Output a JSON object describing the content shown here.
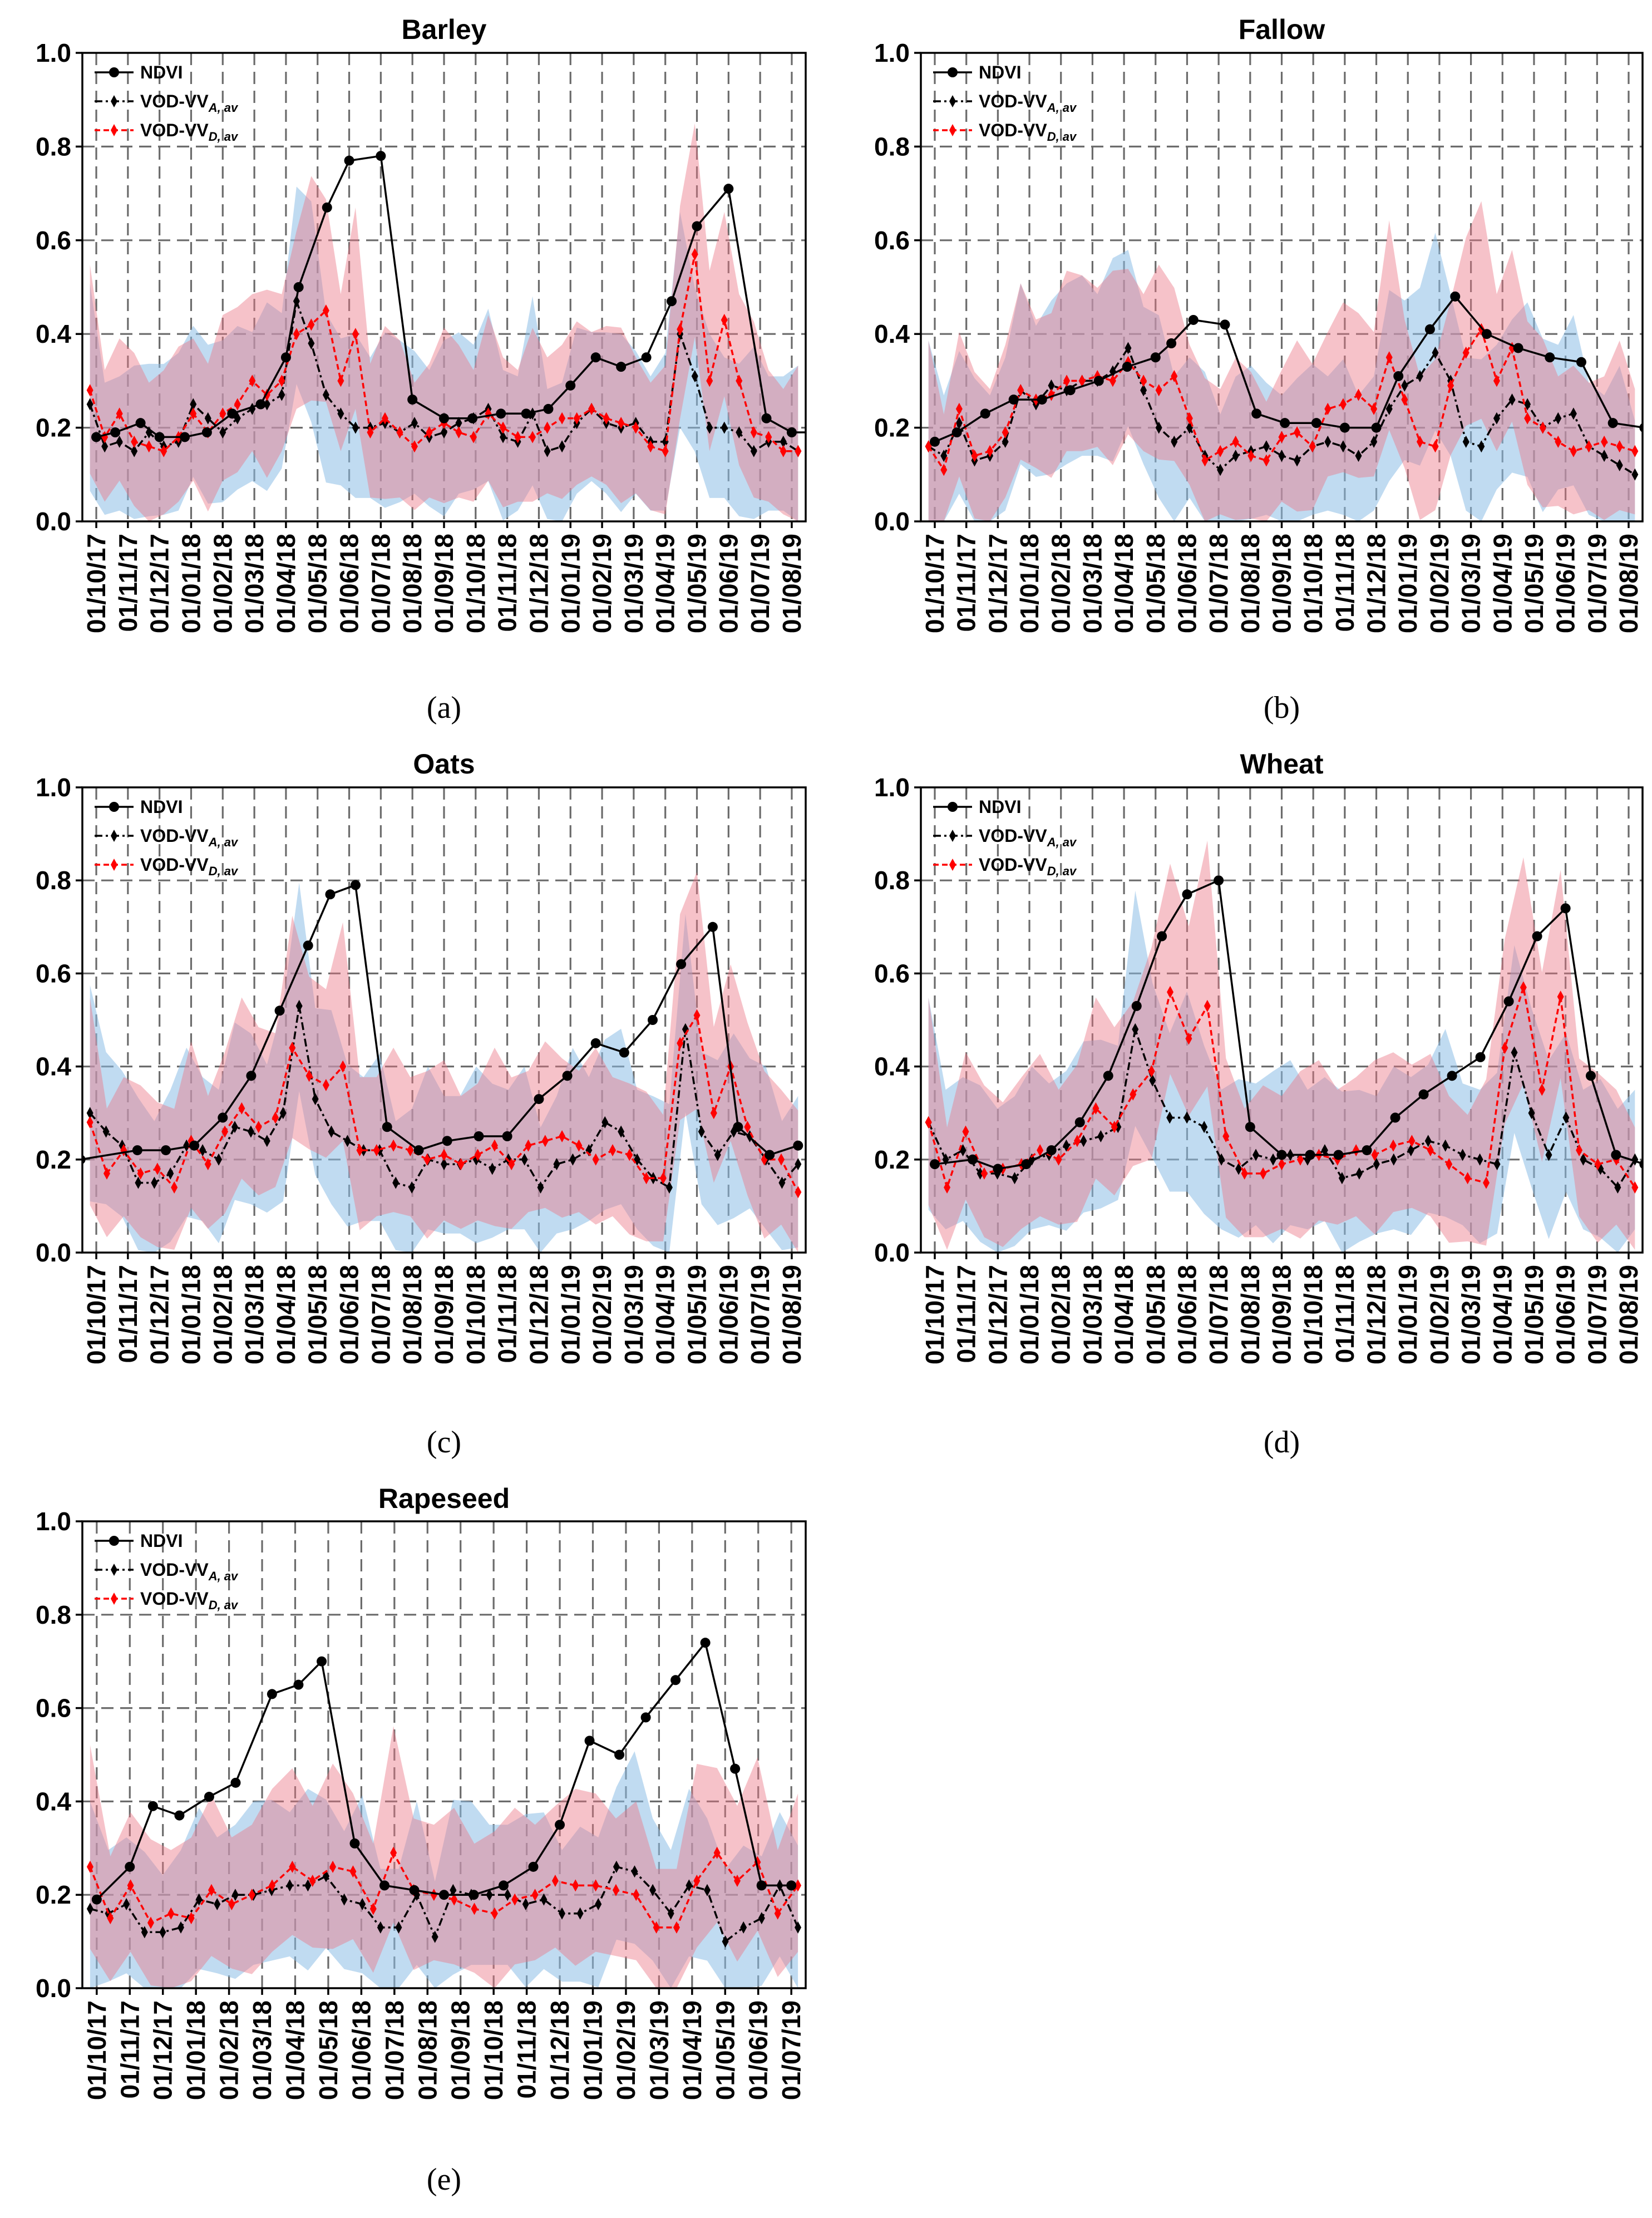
{
  "chart_data": [
    {
      "id": "a",
      "type": "line",
      "title": "Barley",
      "caption": "(a)",
      "ylim": [
        0,
        1
      ],
      "yticks": [
        "0.0",
        "0.2",
        "0.4",
        "0.6",
        "0.8",
        "1.0"
      ],
      "xticks": [
        "01/10/17",
        "01/11/17",
        "01/12/17",
        "01/01/18",
        "01/02/18",
        "01/03/18",
        "01/04/18",
        "01/05/18",
        "01/06/18",
        "01/07/18",
        "01/08/18",
        "01/09/18",
        "01/10/18",
        "01/11/18",
        "01/12/18",
        "01/01/19",
        "01/02/19",
        "01/03/19",
        "01/04/19",
        "01/05/19",
        "01/06/19",
        "01/07/19",
        "01/08/19"
      ],
      "legend": [
        "NDVI",
        "VOD-VV",
        "VOD-VV"
      ],
      "legend_subscripts": [
        "",
        "A, av",
        "D, av"
      ],
      "series": [
        {
          "name": "NDVI",
          "x": [
            0,
            0.6,
            1.4,
            2.0,
            2.8,
            3.5,
            4.3,
            5.2,
            6.0,
            6.4,
            7.3,
            8.0,
            9.0,
            10.0,
            11.0,
            11.9,
            12.8,
            13.6,
            14.3,
            15.0,
            15.8,
            16.6,
            17.4,
            18.2,
            19.0,
            20.0,
            21.2,
            22.0,
            22.7
          ],
          "values": [
            0.18,
            0.19,
            0.21,
            0.18,
            0.18,
            0.19,
            0.23,
            0.25,
            0.35,
            0.5,
            0.67,
            0.77,
            0.78,
            0.26,
            0.22,
            0.22,
            0.23,
            0.23,
            0.24,
            0.29,
            0.35,
            0.33,
            0.35,
            0.47,
            0.63,
            0.71,
            0.22,
            0.19,
            0.19
          ]
        },
        {
          "name": "VOD-VV A,av",
          "values": [
            0.25,
            0.16,
            0.17,
            0.15,
            0.19,
            0.16,
            0.17,
            0.25,
            0.22,
            0.19,
            0.22,
            0.24,
            0.25,
            0.27,
            0.47,
            0.38,
            0.27,
            0.23,
            0.2,
            0.2,
            0.21,
            0.19,
            0.21,
            0.18,
            0.19,
            0.21,
            0.22,
            0.24,
            0.18,
            0.17,
            0.23,
            0.15,
            0.16,
            0.21,
            0.24,
            0.21,
            0.2,
            0.21,
            0.17,
            0.17,
            0.4,
            0.31,
            0.2,
            0.2,
            0.19,
            0.15,
            0.17,
            0.17,
            0.15
          ]
        },
        {
          "name": "VOD-VV D,av",
          "values": [
            0.28,
            0.18,
            0.23,
            0.17,
            0.16,
            0.15,
            0.18,
            0.23,
            0.19,
            0.23,
            0.25,
            0.3,
            0.27,
            0.3,
            0.4,
            0.42,
            0.45,
            0.3,
            0.4,
            0.19,
            0.22,
            0.19,
            0.16,
            0.19,
            0.21,
            0.19,
            0.18,
            0.23,
            0.2,
            0.18,
            0.18,
            0.2,
            0.22,
            0.22,
            0.24,
            0.22,
            0.21,
            0.2,
            0.16,
            0.15,
            0.41,
            0.57,
            0.3,
            0.43,
            0.3,
            0.19,
            0.18,
            0.15,
            0.15
          ]
        }
      ]
    },
    {
      "id": "b",
      "type": "line",
      "title": "Fallow",
      "caption": "(b)",
      "ylim": [
        0,
        1
      ],
      "yticks": [
        "0.0",
        "0.2",
        "0.4",
        "0.6",
        "0.8",
        "1.0"
      ],
      "xticks": [
        "01/10/17",
        "01/11/17",
        "01/12/17",
        "01/01/18",
        "01/02/18",
        "01/03/18",
        "01/04/18",
        "01/05/18",
        "01/06/18",
        "01/07/18",
        "01/08/18",
        "01/09/18",
        "01/10/18",
        "01/11/18",
        "01/12/18",
        "01/01/19",
        "01/02/19",
        "01/03/19",
        "01/04/19",
        "01/05/19",
        "01/06/19",
        "01/07/19",
        "01/08/19"
      ],
      "legend": [
        "NDVI",
        "VOD-VV",
        "VOD-VV"
      ],
      "legend_subscripts": [
        "",
        "A, av",
        "D, av"
      ],
      "series": [
        {
          "name": "NDVI",
          "x": [
            0,
            0.7,
            1.6,
            2.5,
            3.4,
            4.3,
            5.2,
            6.1,
            7.0,
            7.5,
            8.2,
            9.2,
            10.2,
            11.1,
            12.1,
            13.0,
            14.0,
            14.7,
            15.7,
            16.5,
            17.5,
            18.5,
            19.5,
            20.5,
            21.5,
            22.5
          ],
          "values": [
            0.17,
            0.19,
            0.23,
            0.26,
            0.26,
            0.28,
            0.3,
            0.33,
            0.35,
            0.38,
            0.43,
            0.42,
            0.23,
            0.21,
            0.21,
            0.2,
            0.2,
            0.31,
            0.41,
            0.48,
            0.4,
            0.37,
            0.35,
            0.34,
            0.21,
            0.2
          ]
        },
        {
          "name": "VOD-VV A,av",
          "values": [
            0.16,
            0.14,
            0.21,
            0.13,
            0.14,
            0.17,
            0.28,
            0.25,
            0.29,
            0.28,
            0.3,
            0.3,
            0.32,
            0.37,
            0.28,
            0.2,
            0.17,
            0.2,
            0.14,
            0.11,
            0.14,
            0.15,
            0.16,
            0.14,
            0.13,
            0.16,
            0.17,
            0.16,
            0.14,
            0.17,
            0.24,
            0.29,
            0.31,
            0.36,
            0.3,
            0.17,
            0.16,
            0.22,
            0.26,
            0.25,
            0.2,
            0.22,
            0.23,
            0.16,
            0.14,
            0.12,
            0.1
          ]
        },
        {
          "name": "VOD-VV D,av",
          "values": [
            0.16,
            0.11,
            0.24,
            0.14,
            0.15,
            0.19,
            0.28,
            0.26,
            0.27,
            0.3,
            0.3,
            0.31,
            0.3,
            0.34,
            0.3,
            0.28,
            0.31,
            0.22,
            0.13,
            0.15,
            0.17,
            0.14,
            0.13,
            0.18,
            0.19,
            0.16,
            0.24,
            0.25,
            0.27,
            0.24,
            0.35,
            0.26,
            0.17,
            0.16,
            0.29,
            0.36,
            0.41,
            0.3,
            0.37,
            0.22,
            0.2,
            0.17,
            0.15,
            0.16,
            0.17,
            0.16,
            0.15
          ]
        }
      ]
    },
    {
      "id": "c",
      "type": "line",
      "title": "Oats",
      "caption": "(c)",
      "ylim": [
        0,
        1
      ],
      "yticks": [
        "0.0",
        "0.2",
        "0.4",
        "0.6",
        "0.8",
        "1.0"
      ],
      "xticks": [
        "01/10/17",
        "01/11/17",
        "01/12/17",
        "01/01/18",
        "01/02/18",
        "01/03/18",
        "01/04/18",
        "01/05/18",
        "01/06/18",
        "01/07/18",
        "01/08/18",
        "01/09/18",
        "01/10/18",
        "01/11/18",
        "01/12/18",
        "01/01/19",
        "01/02/19",
        "01/03/19",
        "01/04/19",
        "01/05/19",
        "01/06/19",
        "01/07/19",
        "01/08/19"
      ],
      "legend": [
        "NDVI",
        "VOD-VV",
        "VOD-VV"
      ],
      "legend_subscripts": [
        "",
        "A, av",
        "D, av"
      ],
      "series": [
        {
          "name": "NDVI",
          "x": [
            -0.5,
            1.3,
            2.2,
            3.1,
            4.0,
            4.9,
            5.8,
            6.7,
            7.4,
            8.2,
            9.2,
            10.2,
            11.1,
            12.1,
            13.0,
            14.0,
            14.9,
            15.8,
            16.7,
            17.6,
            18.5,
            19.5,
            20.3,
            21.3,
            22.2
          ],
          "values": [
            0.2,
            0.22,
            0.22,
            0.23,
            0.29,
            0.38,
            0.52,
            0.66,
            0.77,
            0.79,
            0.27,
            0.22,
            0.24,
            0.25,
            0.25,
            0.33,
            0.38,
            0.45,
            0.43,
            0.5,
            0.62,
            0.7,
            0.27,
            0.21,
            0.23
          ]
        },
        {
          "name": "VOD-VV A,av",
          "values": [
            0.3,
            0.26,
            0.23,
            0.15,
            0.15,
            0.17,
            0.23,
            0.22,
            0.2,
            0.27,
            0.26,
            0.24,
            0.3,
            0.53,
            0.33,
            0.26,
            0.24,
            0.22,
            0.22,
            0.15,
            0.14,
            0.2,
            0.19,
            0.19,
            0.2,
            0.18,
            0.2,
            0.2,
            0.14,
            0.19,
            0.2,
            0.22,
            0.28,
            0.26,
            0.2,
            0.16,
            0.14,
            0.48,
            0.26,
            0.21,
            0.26,
            0.25,
            0.2,
            0.15,
            0.19
          ]
        },
        {
          "name": "VOD-VV D,av",
          "values": [
            0.28,
            0.17,
            0.22,
            0.17,
            0.18,
            0.14,
            0.24,
            0.19,
            0.26,
            0.31,
            0.27,
            0.29,
            0.44,
            0.38,
            0.36,
            0.4,
            0.22,
            0.22,
            0.23,
            0.22,
            0.2,
            0.21,
            0.19,
            0.21,
            0.23,
            0.19,
            0.23,
            0.24,
            0.25,
            0.23,
            0.2,
            0.22,
            0.21,
            0.16,
            0.16,
            0.45,
            0.51,
            0.3,
            0.4,
            0.27,
            0.2,
            0.2,
            0.13
          ]
        }
      ]
    },
    {
      "id": "d",
      "type": "line",
      "title": "Wheat",
      "caption": "(d)",
      "ylim": [
        0,
        1
      ],
      "yticks": [
        "0.0",
        "0.2",
        "0.4",
        "0.6",
        "0.8",
        "1.0"
      ],
      "xticks": [
        "01/10/17",
        "01/11/17",
        "01/12/17",
        "01/01/18",
        "01/02/18",
        "01/03/18",
        "01/04/18",
        "01/05/18",
        "01/06/18",
        "01/07/18",
        "01/08/18",
        "01/09/18",
        "01/10/18",
        "01/11/18",
        "01/12/18",
        "01/01/19",
        "01/02/19",
        "01/03/19",
        "01/04/19",
        "01/05/19",
        "01/06/19",
        "01/07/19",
        "01/08/19"
      ],
      "legend": [
        "NDVI",
        "VOD-VV",
        "VOD-VV"
      ],
      "legend_subscripts": [
        "",
        "A, av",
        "D, av"
      ],
      "series": [
        {
          "name": "NDVI",
          "x": [
            0,
            1.2,
            2.0,
            2.9,
            3.7,
            4.6,
            5.5,
            6.4,
            7.2,
            8.0,
            9.0,
            10.0,
            11.0,
            11.9,
            12.8,
            13.7,
            14.6,
            15.5,
            16.4,
            17.3,
            18.2,
            19.1,
            20.0,
            20.8,
            21.6,
            22.5,
            23.3
          ],
          "values": [
            0.19,
            0.2,
            0.18,
            0.19,
            0.22,
            0.28,
            0.38,
            0.53,
            0.68,
            0.77,
            0.8,
            0.27,
            0.21,
            0.21,
            0.21,
            0.22,
            0.29,
            0.34,
            0.38,
            0.42,
            0.54,
            0.68,
            0.74,
            0.38,
            0.21,
            0.19,
            0.19
          ]
        },
        {
          "name": "VOD-VV A,av",
          "values": [
            0.28,
            0.2,
            0.22,
            0.17,
            0.17,
            0.16,
            0.2,
            0.21,
            0.23,
            0.24,
            0.25,
            0.27,
            0.48,
            0.37,
            0.29,
            0.29,
            0.27,
            0.2,
            0.18,
            0.21,
            0.2,
            0.21,
            0.2,
            0.22,
            0.16,
            0.17,
            0.19,
            0.2,
            0.22,
            0.24,
            0.23,
            0.21,
            0.2,
            0.19,
            0.43,
            0.3,
            0.21,
            0.29,
            0.2,
            0.18,
            0.14,
            0.2
          ]
        },
        {
          "name": "VOD-VV D,av",
          "values": [
            0.28,
            0.14,
            0.26,
            0.17,
            0.18,
            0.19,
            0.22,
            0.2,
            0.24,
            0.31,
            0.27,
            0.34,
            0.39,
            0.56,
            0.46,
            0.53,
            0.25,
            0.17,
            0.17,
            0.19,
            0.2,
            0.21,
            0.2,
            0.22,
            0.21,
            0.23,
            0.24,
            0.22,
            0.19,
            0.16,
            0.15,
            0.44,
            0.57,
            0.35,
            0.55,
            0.22,
            0.19,
            0.2,
            0.14
          ]
        }
      ]
    },
    {
      "id": "e",
      "type": "line",
      "title": "Rapeseed",
      "caption": "(e)",
      "ylim": [
        0,
        1
      ],
      "yticks": [
        "0.0",
        "0.2",
        "0.4",
        "0.6",
        "0.8",
        "1.0"
      ],
      "xticks": [
        "01/10/17",
        "01/11/17",
        "01/12/17",
        "01/01/18",
        "01/02/18",
        "01/03/18",
        "01/04/18",
        "01/05/18",
        "01/06/18",
        "01/07/18",
        "01/08/18",
        "01/09/18",
        "01/10/18",
        "01/11/18",
        "01/12/18",
        "01/01/19",
        "01/02/19",
        "01/03/19",
        "01/04/19",
        "01/05/19",
        "01/06/19",
        "01/07/19"
      ],
      "legend": [
        "NDVI",
        "VOD-VV",
        "VOD-VV"
      ],
      "legend_subscripts": [
        "",
        "A, av",
        "D, av"
      ],
      "series": [
        {
          "name": "NDVI",
          "x": [
            0,
            1.0,
            1.7,
            2.5,
            3.4,
            4.2,
            5.3,
            6.1,
            6.8,
            7.8,
            8.7,
            9.6,
            10.5,
            11.4,
            12.3,
            13.2,
            14.0,
            14.9,
            15.8,
            16.6,
            17.5,
            18.4,
            19.3,
            20.1,
            21.0
          ],
          "values": [
            0.19,
            0.26,
            0.39,
            0.37,
            0.41,
            0.44,
            0.63,
            0.65,
            0.7,
            0.31,
            0.22,
            0.21,
            0.2,
            0.2,
            0.22,
            0.26,
            0.35,
            0.53,
            0.5,
            0.58,
            0.66,
            0.74,
            0.47,
            0.22,
            0.22
          ]
        },
        {
          "name": "VOD-VV A,av",
          "values": [
            0.17,
            0.16,
            0.18,
            0.12,
            0.12,
            0.13,
            0.19,
            0.18,
            0.2,
            0.2,
            0.21,
            0.22,
            0.22,
            0.24,
            0.19,
            0.18,
            0.13,
            0.13,
            0.2,
            0.11,
            0.21,
            0.2,
            0.2,
            0.2,
            0.18,
            0.19,
            0.16,
            0.16,
            0.18,
            0.26,
            0.25,
            0.21,
            0.16,
            0.22,
            0.21,
            0.1,
            0.13,
            0.15,
            0.22,
            0.13
          ]
        },
        {
          "name": "VOD-VV D,av",
          "values": [
            0.26,
            0.15,
            0.22,
            0.14,
            0.16,
            0.15,
            0.21,
            0.18,
            0.2,
            0.22,
            0.26,
            0.23,
            0.26,
            0.25,
            0.17,
            0.29,
            0.21,
            0.2,
            0.19,
            0.17,
            0.16,
            0.19,
            0.2,
            0.23,
            0.22,
            0.22,
            0.21,
            0.2,
            0.13,
            0.13,
            0.23,
            0.29,
            0.23,
            0.27,
            0.16,
            0.22
          ]
        }
      ]
    }
  ]
}
